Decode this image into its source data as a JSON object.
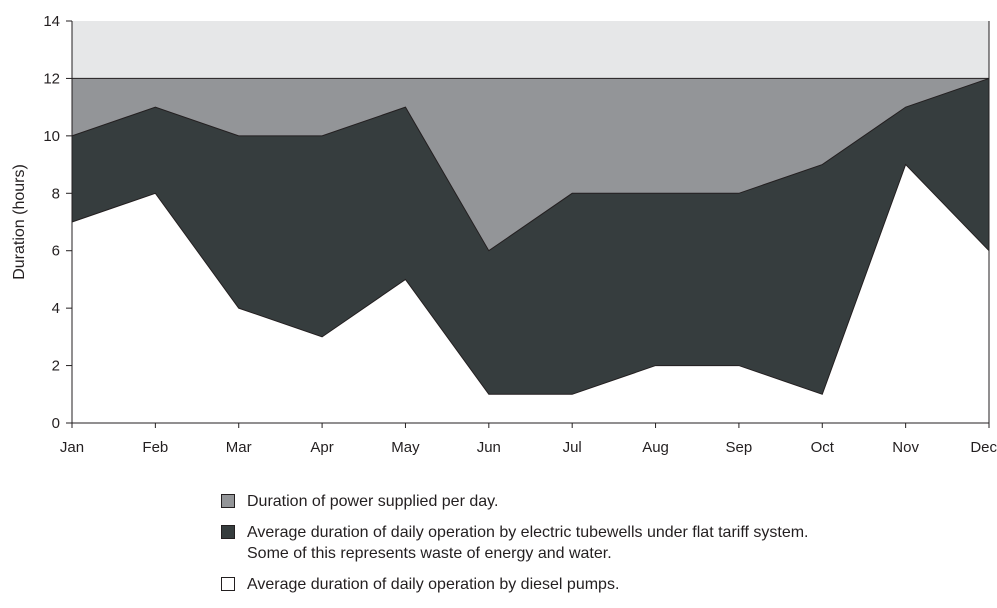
{
  "chart_data": {
    "type": "area",
    "xlabel": "",
    "ylabel": "Duration (hours)",
    "ylim": [
      0,
      14
    ],
    "yticks": [
      0,
      2,
      4,
      6,
      8,
      10,
      12,
      14
    ],
    "categories": [
      "Jan",
      "Feb",
      "Mar",
      "Apr",
      "May",
      "Jun",
      "Jul",
      "Aug",
      "Sep",
      "Oct",
      "Nov",
      "Dec"
    ],
    "grid": false,
    "legend_position": "bottom",
    "background_band": {
      "from": 12,
      "to": 14,
      "color": "#e6e7e8"
    },
    "series": [
      {
        "name": "Duration of power supplied per day.",
        "values": [
          12,
          12,
          12,
          12,
          12,
          12,
          12,
          12,
          12,
          12,
          12,
          12
        ],
        "color": "#939598"
      },
      {
        "name": "Average duration of daily operation by electric tubewells under flat tariff system.",
        "name_line2": "Some of this represents waste of energy and water.",
        "values": [
          10,
          11,
          10,
          10,
          11,
          6,
          8,
          8,
          8,
          9,
          11,
          12
        ],
        "color": "#363d3e"
      },
      {
        "name": "Average duration of daily operation by diesel pumps.",
        "values": [
          7,
          8,
          4,
          3,
          5,
          1,
          1,
          2,
          2,
          1,
          9,
          6
        ],
        "color": "#ffffff"
      }
    ]
  }
}
